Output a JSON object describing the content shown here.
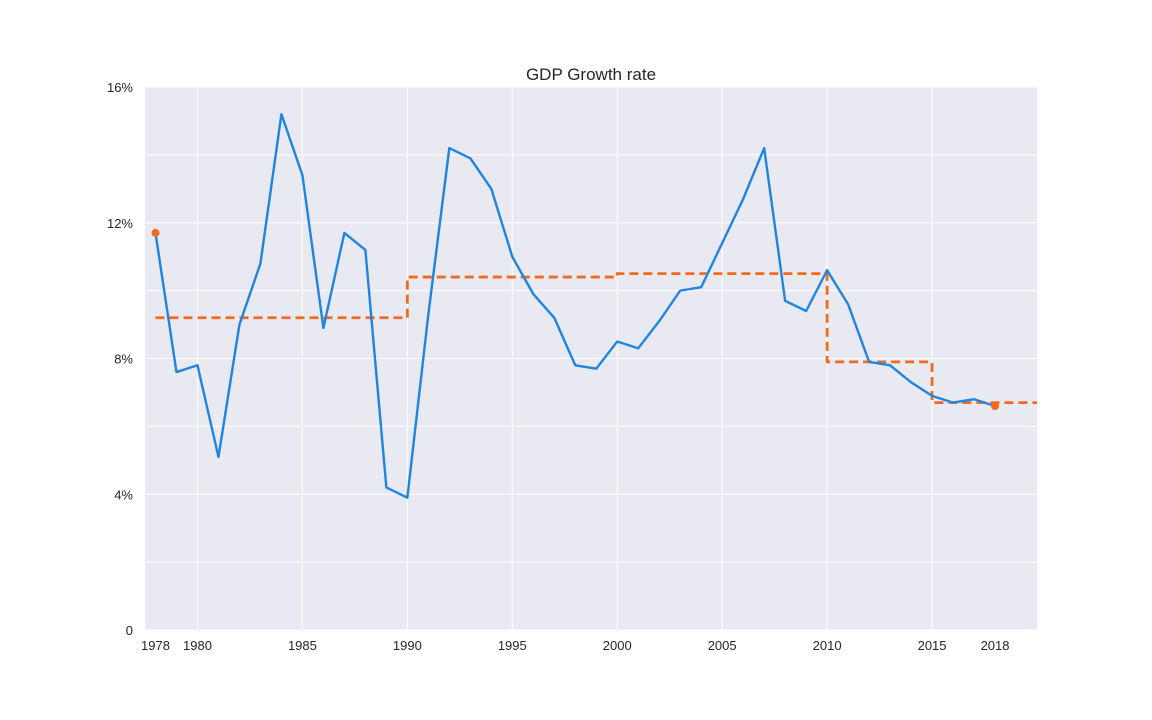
{
  "chart_data": {
    "type": "line",
    "title": "GDP Growth rate",
    "xlabel": "",
    "ylabel": "",
    "xlim": [
      1977.5,
      2020
    ],
    "ylim": [
      0,
      16
    ],
    "grid": true,
    "x_ticks": [
      1978,
      1980,
      1985,
      1990,
      1995,
      2000,
      2005,
      2010,
      2015,
      2018
    ],
    "x_tick_labels": [
      "1978",
      "1980",
      "1985",
      "1990",
      "1995",
      "2000",
      "2005",
      "2010",
      "2015",
      "2018"
    ],
    "y_ticks": [
      0,
      4,
      8,
      12,
      16
    ],
    "y_tick_labels": [
      "0",
      "4%",
      "8%",
      "12%",
      "16%"
    ],
    "series": [
      {
        "x": [
          1978,
          1979,
          1980,
          1981,
          1982,
          1983,
          1984,
          1985,
          1986,
          1987,
          1988,
          1989,
          1990,
          1991,
          1992,
          1993,
          1994,
          1995,
          1996,
          1997,
          1998,
          1999,
          2000,
          2001,
          2002,
          2003,
          2004,
          2005,
          2006,
          2007,
          2008,
          2009,
          2010,
          2011,
          2012,
          2013,
          2014,
          2015,
          2016,
          2017,
          2018
        ],
        "values": [
          11.7,
          7.6,
          7.8,
          5.1,
          9.0,
          10.8,
          15.2,
          13.4,
          8.9,
          11.7,
          11.2,
          4.2,
          3.9,
          9.3,
          14.2,
          13.9,
          13.0,
          11.0,
          9.9,
          9.2,
          7.8,
          7.7,
          8.5,
          8.3,
          9.1,
          10.0,
          10.1,
          11.4,
          12.7,
          14.2,
          9.7,
          9.4,
          10.6,
          9.6,
          7.9,
          7.8,
          7.3,
          6.9,
          6.7,
          6.8,
          6.6
        ],
        "color": "#1f85e4",
        "style": "solid"
      },
      {
        "segments": [
          {
            "x_start": 1978,
            "x_end": 1990,
            "value": 9.2
          },
          {
            "x_start": 1990,
            "x_end": 2000,
            "value": 10.4
          },
          {
            "x_start": 2000,
            "x_end": 2010,
            "value": 10.5
          },
          {
            "x_start": 2010,
            "x_end": 2015,
            "value": 7.9
          },
          {
            "x_start": 2015,
            "x_end": 2020,
            "value": 6.7
          }
        ],
        "color": "#f26b1d",
        "style": "dashed-step"
      }
    ],
    "highlighted_points": [
      {
        "x": 1978,
        "y": 11.7
      },
      {
        "x": 2018,
        "y": 6.6
      }
    ],
    "background_color": "#e9e9f1",
    "grid_color": "#ffffff"
  }
}
